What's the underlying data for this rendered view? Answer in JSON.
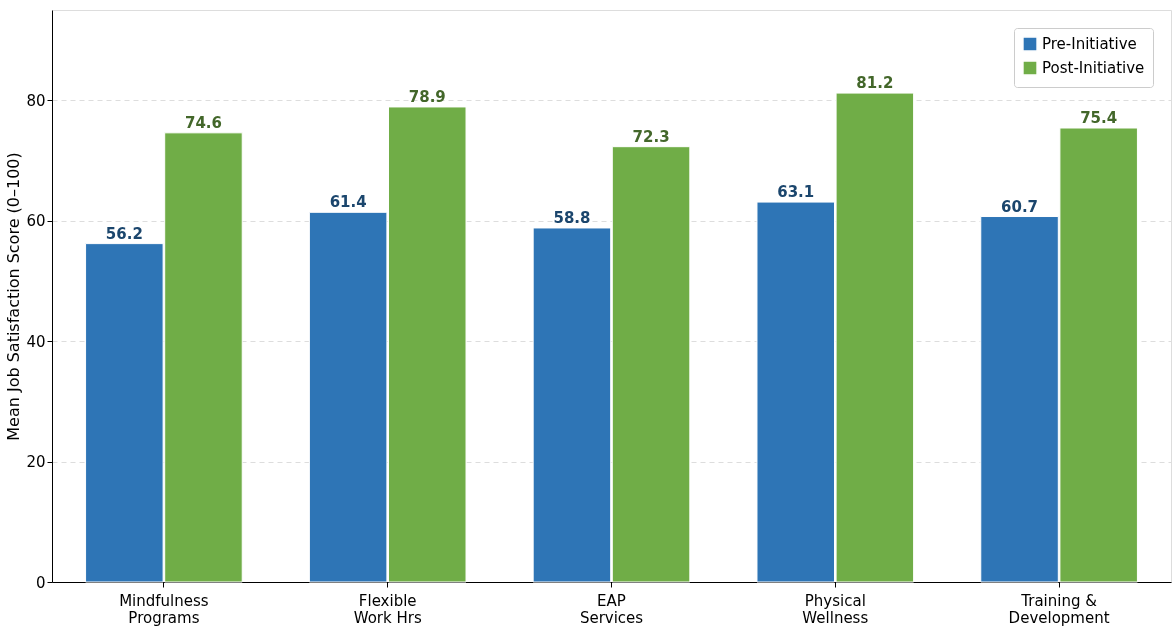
{
  "chart_data": {
    "type": "bar",
    "ylabel": "Mean Job Satisfaction Score (0–100)",
    "categories": [
      "Mindfulness\nPrograms",
      "Flexible\nWork Hrs",
      "EAP\nServices",
      "Physical\nWellness",
      "Training &\nDevelopment"
    ],
    "series": [
      {
        "name": "Pre-Initiative",
        "color": "#2e75b6",
        "values": [
          56.2,
          61.4,
          58.8,
          63.1,
          60.7
        ]
      },
      {
        "name": "Post-Initiative",
        "color": "#70ad47",
        "values": [
          74.6,
          78.9,
          72.3,
          81.2,
          75.4
        ]
      }
    ],
    "ylim": [
      0,
      95
    ],
    "yticks": [
      0,
      20,
      40,
      60,
      80
    ],
    "grid": "y",
    "legend": "top right",
    "data_labels": true
  }
}
